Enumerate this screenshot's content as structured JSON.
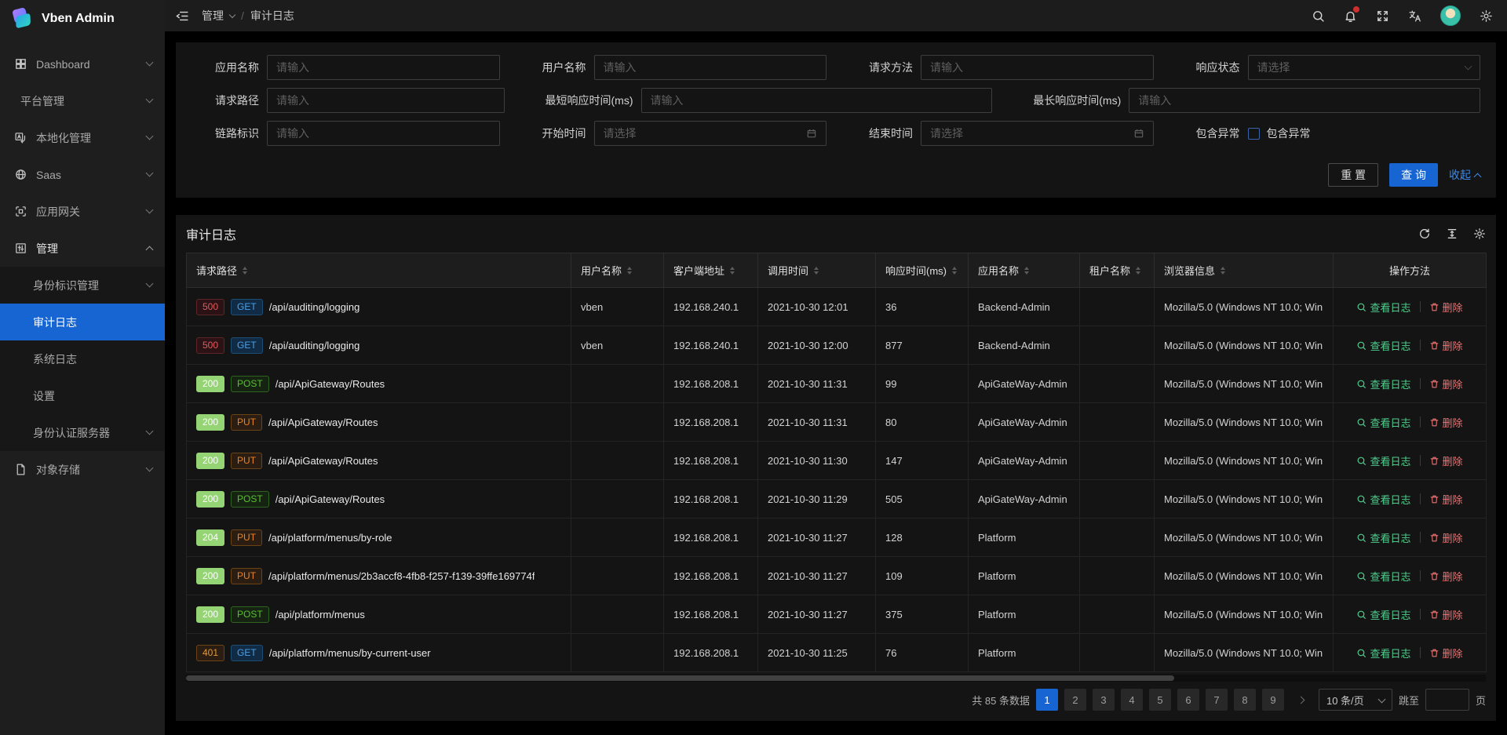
{
  "app": {
    "title": "Vben Admin"
  },
  "header": {
    "breadcrumb": {
      "root": "管理",
      "current": "审计日志",
      "separator": "/"
    },
    "icons": [
      "search-icon",
      "notification-icon",
      "fullscreen-icon",
      "translate-icon",
      "avatar",
      "settings-icon"
    ],
    "notification_has_badge": true
  },
  "sidebar": {
    "items": [
      {
        "id": "dashboard",
        "label": "Dashboard",
        "icon": "dashboard-icon",
        "chevron": true,
        "variant": "root"
      },
      {
        "id": "platform",
        "label": "平台管理",
        "icon": null,
        "chevron": true,
        "variant": "root"
      },
      {
        "id": "localization",
        "label": "本地化管理",
        "icon": "localization-icon",
        "chevron": true,
        "variant": "root"
      },
      {
        "id": "saas",
        "label": "Saas",
        "icon": "saas-icon",
        "chevron": true,
        "variant": "root"
      },
      {
        "id": "gateway",
        "label": "应用网关",
        "icon": "gateway-icon",
        "chevron": true,
        "variant": "root"
      },
      {
        "id": "manage",
        "label": "管理",
        "icon": "manage-icon",
        "chevron": true,
        "expanded": true,
        "variant": "root"
      },
      {
        "id": "identity",
        "label": "身份标识管理",
        "icon": null,
        "chevron": true,
        "variant": "child"
      },
      {
        "id": "audit-log",
        "label": "审计日志",
        "icon": null,
        "chevron": false,
        "variant": "child",
        "selected": true
      },
      {
        "id": "system-log",
        "label": "系统日志",
        "icon": null,
        "chevron": false,
        "variant": "child"
      },
      {
        "id": "settings",
        "label": "设置",
        "icon": null,
        "chevron": false,
        "variant": "child"
      },
      {
        "id": "auth-server",
        "label": "身份认证服务器",
        "icon": null,
        "chevron": true,
        "variant": "child"
      },
      {
        "id": "object-storage",
        "label": "对象存储",
        "icon": "file-icon",
        "chevron": true,
        "variant": "root"
      }
    ]
  },
  "filter": {
    "app_name": {
      "label": "应用名称",
      "placeholder": "请输入"
    },
    "user_name": {
      "label": "用户名称",
      "placeholder": "请输入"
    },
    "http_method": {
      "label": "请求方法",
      "placeholder": "请输入"
    },
    "http_status": {
      "label": "响应状态",
      "placeholder": "请选择"
    },
    "request_path": {
      "label": "请求路径",
      "placeholder": "请输入"
    },
    "min_ms": {
      "label": "最短响应时间(ms)",
      "placeholder": "请输入"
    },
    "max_ms": {
      "label": "最长响应时间(ms)",
      "placeholder": "请输入"
    },
    "trace_id": {
      "label": "链路标识",
      "placeholder": "请输入"
    },
    "start_time": {
      "label": "开始时间",
      "placeholder": "请选择"
    },
    "end_time": {
      "label": "结束时间",
      "placeholder": "请选择"
    },
    "exception": {
      "label": "包含异常",
      "checkbox_label": "包含异常",
      "checked": false
    },
    "buttons": {
      "reset": "重 置",
      "search": "查 询",
      "collapse": "收起"
    }
  },
  "table": {
    "title": "审计日志",
    "toolbar_icons": [
      "refresh-icon",
      "column-height-icon",
      "table-settings-icon"
    ],
    "columns": [
      {
        "key": "path",
        "label": "请求路径",
        "sortable": true
      },
      {
        "key": "user",
        "label": "用户名称",
        "sortable": true
      },
      {
        "key": "client",
        "label": "客户端地址",
        "sortable": true
      },
      {
        "key": "time",
        "label": "调用时间",
        "sortable": true
      },
      {
        "key": "duration",
        "label": "响应时间(ms)",
        "sortable": true
      },
      {
        "key": "app",
        "label": "应用名称",
        "sortable": true
      },
      {
        "key": "tenant",
        "label": "租户名称",
        "sortable": true
      },
      {
        "key": "browser",
        "label": "浏览器信息",
        "sortable": true
      },
      {
        "key": "actions",
        "label": "操作方法",
        "sortable": false
      }
    ],
    "actions": {
      "view": "查看日志",
      "delete": "删除"
    },
    "rows": [
      {
        "status": "500",
        "method": "GET",
        "path": "/api/auditing/logging",
        "user": "vben",
        "client": "192.168.240.1",
        "time": "2021-10-30 12:01",
        "duration": "36",
        "app": "Backend-Admin",
        "tenant": "",
        "browser": "Mozilla/5.0 (Windows NT 10.0; Win"
      },
      {
        "status": "500",
        "method": "GET",
        "path": "/api/auditing/logging",
        "user": "vben",
        "client": "192.168.240.1",
        "time": "2021-10-30 12:00",
        "duration": "877",
        "app": "Backend-Admin",
        "tenant": "",
        "browser": "Mozilla/5.0 (Windows NT 10.0; Win"
      },
      {
        "status": "200",
        "method": "POST",
        "path": "/api/ApiGateway/Routes",
        "user": "",
        "client": "192.168.208.1",
        "time": "2021-10-30 11:31",
        "duration": "99",
        "app": "ApiGateWay-Admin",
        "tenant": "",
        "browser": "Mozilla/5.0 (Windows NT 10.0; Win"
      },
      {
        "status": "200",
        "method": "PUT",
        "path": "/api/ApiGateway/Routes",
        "user": "",
        "client": "192.168.208.1",
        "time": "2021-10-30 11:31",
        "duration": "80",
        "app": "ApiGateWay-Admin",
        "tenant": "",
        "browser": "Mozilla/5.0 (Windows NT 10.0; Win"
      },
      {
        "status": "200",
        "method": "PUT",
        "path": "/api/ApiGateway/Routes",
        "user": "",
        "client": "192.168.208.1",
        "time": "2021-10-30 11:30",
        "duration": "147",
        "app": "ApiGateWay-Admin",
        "tenant": "",
        "browser": "Mozilla/5.0 (Windows NT 10.0; Win"
      },
      {
        "status": "200",
        "method": "POST",
        "path": "/api/ApiGateway/Routes",
        "user": "",
        "client": "192.168.208.1",
        "time": "2021-10-30 11:29",
        "duration": "505",
        "app": "ApiGateWay-Admin",
        "tenant": "",
        "browser": "Mozilla/5.0 (Windows NT 10.0; Win"
      },
      {
        "status": "204",
        "method": "PUT",
        "path": "/api/platform/menus/by-role",
        "user": "",
        "client": "192.168.208.1",
        "time": "2021-10-30 11:27",
        "duration": "128",
        "app": "Platform",
        "tenant": "",
        "browser": "Mozilla/5.0 (Windows NT 10.0; Win"
      },
      {
        "status": "200",
        "method": "PUT",
        "path": "/api/platform/menus/2b3accf8-4fb8-f257-f139-39ffe169774f",
        "user": "",
        "client": "192.168.208.1",
        "time": "2021-10-30 11:27",
        "duration": "109",
        "app": "Platform",
        "tenant": "",
        "browser": "Mozilla/5.0 (Windows NT 10.0; Win"
      },
      {
        "status": "200",
        "method": "POST",
        "path": "/api/platform/menus",
        "user": "",
        "client": "192.168.208.1",
        "time": "2021-10-30 11:27",
        "duration": "375",
        "app": "Platform",
        "tenant": "",
        "browser": "Mozilla/5.0 (Windows NT 10.0; Win"
      },
      {
        "status": "401",
        "method": "GET",
        "path": "/api/platform/menus/by-current-user",
        "user": "",
        "client": "192.168.208.1",
        "time": "2021-10-30 11:25",
        "duration": "76",
        "app": "Platform",
        "tenant": "",
        "browser": "Mozilla/5.0 (Windows NT 10.0; Win"
      }
    ]
  },
  "pagination": {
    "total_text": "共 85 条数据",
    "pages": [
      "1",
      "2",
      "3",
      "4",
      "5",
      "6",
      "7",
      "8",
      "9"
    ],
    "active_page": "1",
    "page_size_label": "10 条/页",
    "jump_prefix": "跳至",
    "jump_suffix": "页",
    "jump_value": ""
  },
  "colors": {
    "accent_blue": "#1765d3",
    "status_success_bg": "#95d475",
    "status_error_text": "#e05c5e",
    "status_warn_text": "#e09a3e",
    "method_get_text": "#4aa0e8",
    "method_post_text": "#57c22d",
    "method_put_text": "#e8832a",
    "action_view_text": "#4fcf8e",
    "action_delete_text": "#ee7374"
  }
}
